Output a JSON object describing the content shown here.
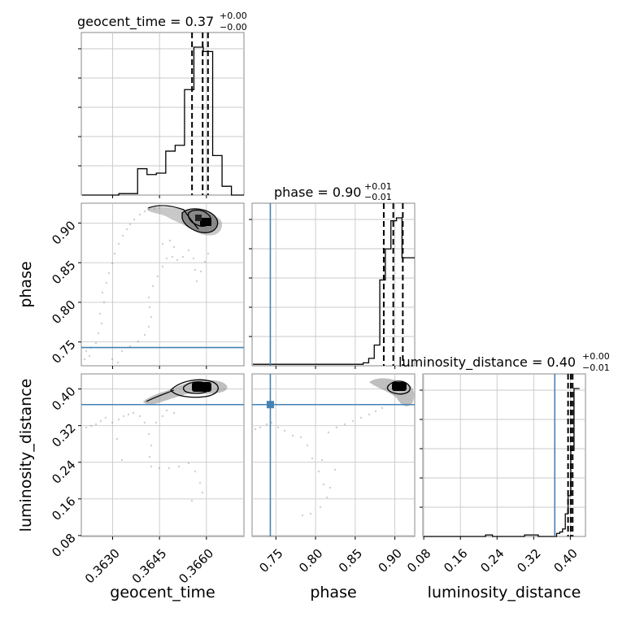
{
  "chart_data": {
    "type": "corner",
    "parameters": [
      "geocent_time",
      "phase",
      "luminosity_distance"
    ],
    "titles": {
      "geocent_time": {
        "label": "geocent_time",
        "median": "0.37",
        "plus": "+0.00",
        "minus": "−0.00"
      },
      "phase": {
        "label": "phase",
        "median": "0.90",
        "plus": "+0.01",
        "minus": "−0.01"
      },
      "luminosity_distance": {
        "label": "luminosity_distance",
        "median": "0.40",
        "plus": "+0.00",
        "minus": "−0.01"
      }
    },
    "axis_labels": {
      "geocent_time": "geocent_time",
      "phase": "phase",
      "luminosity_distance": "luminosity_distance"
    },
    "ranges": {
      "geocent_time": [
        0.362,
        0.3672
      ],
      "phase": [
        0.72,
        0.925
      ],
      "luminosity_distance": [
        0.078,
        0.433
      ]
    },
    "ticks": {
      "geocent_time": {
        "values": [
          0.363,
          0.3645,
          0.366
        ],
        "labels": [
          "0.3630",
          "0.3645",
          "0.3660"
        ]
      },
      "phase": {
        "values": [
          0.75,
          0.8,
          0.85,
          0.9
        ],
        "labels": [
          "0.75",
          "0.80",
          "0.85",
          "0.90"
        ]
      },
      "luminosity_distance": {
        "values": [
          0.08,
          0.16,
          0.24,
          0.32,
          0.4
        ],
        "labels": [
          "0.08",
          "0.16",
          "0.24",
          "0.32",
          "0.40"
        ]
      }
    },
    "truths": {
      "geocent_time": null,
      "phase": 0.743,
      "luminosity_distance": 0.366
    },
    "quantiles": {
      "geocent_time": [
        0.36554,
        0.36588,
        0.36605
      ],
      "phase": [
        0.886,
        0.898,
        0.91
      ],
      "luminosity_distance": [
        0.395,
        0.401,
        0.405
      ]
    },
    "histograms": {
      "geocent_time": {
        "edges": [
          0.362,
          0.3623,
          0.3626,
          0.3629,
          0.3632,
          0.3635,
          0.3638,
          0.3641,
          0.3644,
          0.3647,
          0.365,
          0.3653,
          0.3656,
          0.3659,
          0.3662,
          0.3665,
          0.3668,
          0.3672
        ],
        "counts": [
          0,
          0,
          0,
          0,
          1,
          1,
          18,
          14,
          15,
          30,
          34,
          72,
          101,
          98,
          27,
          6,
          0
        ]
      },
      "phase": {
        "edges": [
          0.72,
          0.8,
          0.86,
          0.867,
          0.874,
          0.881,
          0.888,
          0.895,
          0.902,
          0.909,
          0.916,
          0.925
        ],
        "counts": [
          1,
          1,
          2,
          5,
          14,
          58,
          79,
          98,
          100,
          73,
          73
        ]
      },
      "luminosity_distance": {
        "edges": [
          0.078,
          0.18,
          0.215,
          0.23,
          0.3,
          0.33,
          0.37,
          0.377,
          0.383,
          0.389,
          0.395,
          0.401,
          0.408,
          0.42
        ],
        "counts": [
          0,
          0,
          1,
          0,
          1,
          0,
          2,
          3,
          5,
          15,
          27,
          57,
          98
        ]
      }
    },
    "grid": true,
    "truth_color": "#4682b4",
    "hist_color": "#000000"
  }
}
